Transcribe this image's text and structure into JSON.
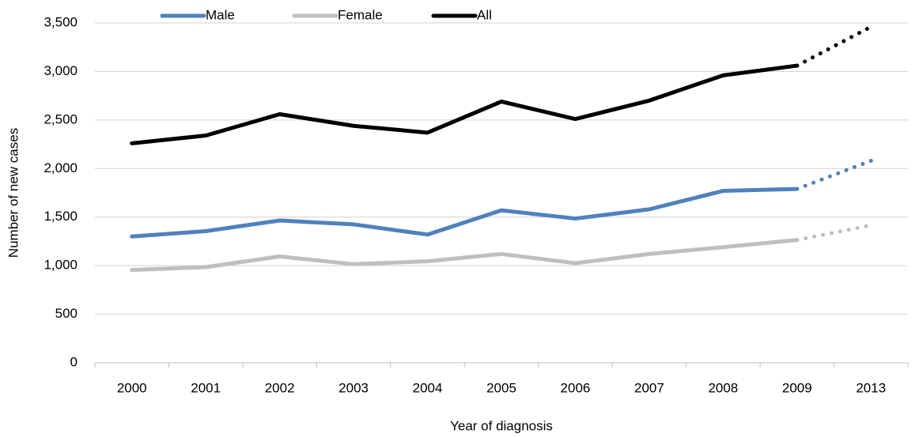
{
  "chart_data": {
    "type": "line",
    "xlabel": "Year of diagnosis",
    "ylabel": "Number of new cases",
    "categories": [
      "2000",
      "2001",
      "2002",
      "2003",
      "2004",
      "2005",
      "2006",
      "2007",
      "2008",
      "2009",
      "2013"
    ],
    "dotted_from": "2009",
    "series": [
      {
        "name": "Male",
        "color": "#4f81bd",
        "values": [
          1300,
          1355,
          1465,
          1425,
          1320,
          1570,
          1485,
          1580,
          1770,
          1790,
          2080
        ]
      },
      {
        "name": "Female",
        "color": "#bfbfbf",
        "values": [
          955,
          985,
          1095,
          1015,
          1045,
          1120,
          1025,
          1120,
          1190,
          1265,
          1415
        ]
      },
      {
        "name": "All",
        "color": "#000000",
        "values": [
          2260,
          2340,
          2560,
          2440,
          2370,
          2690,
          2510,
          2700,
          2960,
          3060,
          3460
        ]
      }
    ],
    "ylim": [
      0,
      3500
    ],
    "yticks": [
      0,
      500,
      {
        "value": 1000,
        "label": "1,000"
      },
      {
        "value": 1500,
        "label": "1,500"
      },
      {
        "value": 2000,
        "label": "2,000"
      },
      {
        "value": 2500,
        "label": "2,500"
      },
      {
        "value": 3000,
        "label": "3,000"
      },
      {
        "value": 3500,
        "label": "3,500"
      }
    ],
    "grid": true
  }
}
